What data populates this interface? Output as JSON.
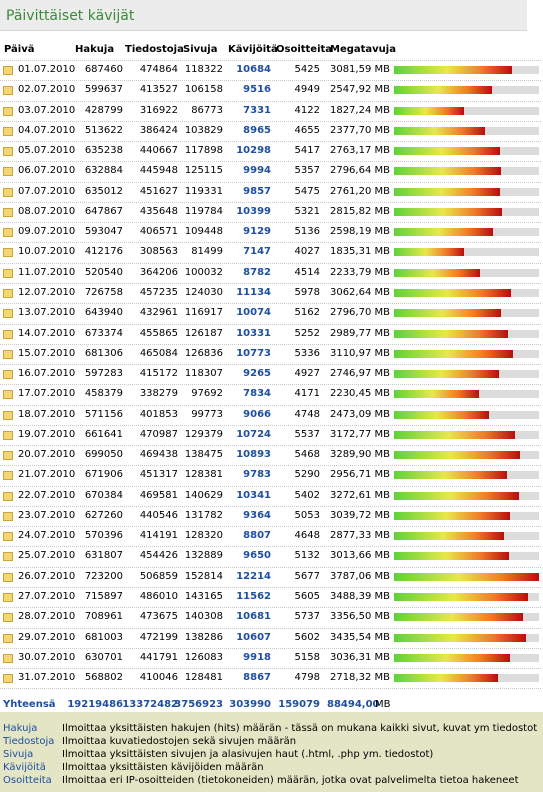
{
  "title": "Päivittäiset kävijät",
  "table": {
    "columns": [
      "Päivä",
      "Hakuja",
      "Tiedostoja",
      "Sivuja",
      "Kävijöitä",
      "Osoitteita",
      "Megatavuja"
    ],
    "rows": [
      {
        "date": "01.07.2010",
        "hits": 687460,
        "files": 474864,
        "pages": 118322,
        "visits": 10684,
        "sites": 5425,
        "mb": 3081.59,
        "mb_label": "3081,59 MB"
      },
      {
        "date": "02.07.2010",
        "hits": 599637,
        "files": 413527,
        "pages": 106158,
        "visits": 9516,
        "sites": 4949,
        "mb": 2547.92,
        "mb_label": "2547,92 MB"
      },
      {
        "date": "03.07.2010",
        "hits": 428799,
        "files": 316922,
        "pages": 86773,
        "visits": 7331,
        "sites": 4122,
        "mb": 1827.24,
        "mb_label": "1827,24 MB"
      },
      {
        "date": "04.07.2010",
        "hits": 513622,
        "files": 386424,
        "pages": 103829,
        "visits": 8965,
        "sites": 4655,
        "mb": 2377.7,
        "mb_label": "2377,70 MB"
      },
      {
        "date": "05.07.2010",
        "hits": 635238,
        "files": 440667,
        "pages": 117898,
        "visits": 10298,
        "sites": 5417,
        "mb": 2763.17,
        "mb_label": "2763,17 MB"
      },
      {
        "date": "06.07.2010",
        "hits": 632884,
        "files": 445948,
        "pages": 125115,
        "visits": 9994,
        "sites": 5357,
        "mb": 2796.64,
        "mb_label": "2796,64 MB"
      },
      {
        "date": "07.07.2010",
        "hits": 635012,
        "files": 451627,
        "pages": 119331,
        "visits": 9857,
        "sites": 5475,
        "mb": 2761.2,
        "mb_label": "2761,20 MB"
      },
      {
        "date": "08.07.2010",
        "hits": 647867,
        "files": 435648,
        "pages": 119784,
        "visits": 10399,
        "sites": 5321,
        "mb": 2815.82,
        "mb_label": "2815,82 MB"
      },
      {
        "date": "09.07.2010",
        "hits": 593047,
        "files": 406571,
        "pages": 109448,
        "visits": 9129,
        "sites": 5136,
        "mb": 2598.19,
        "mb_label": "2598,19 MB"
      },
      {
        "date": "10.07.2010",
        "hits": 412176,
        "files": 308563,
        "pages": 81499,
        "visits": 7147,
        "sites": 4027,
        "mb": 1835.31,
        "mb_label": "1835,31 MB"
      },
      {
        "date": "11.07.2010",
        "hits": 520540,
        "files": 364206,
        "pages": 100032,
        "visits": 8782,
        "sites": 4514,
        "mb": 2233.79,
        "mb_label": "2233,79 MB"
      },
      {
        "date": "12.07.2010",
        "hits": 726758,
        "files": 457235,
        "pages": 124030,
        "visits": 11134,
        "sites": 5978,
        "mb": 3062.64,
        "mb_label": "3062,64 MB"
      },
      {
        "date": "13.07.2010",
        "hits": 643940,
        "files": 432961,
        "pages": 116917,
        "visits": 10074,
        "sites": 5162,
        "mb": 2796.7,
        "mb_label": "2796,70 MB"
      },
      {
        "date": "14.07.2010",
        "hits": 673374,
        "files": 455865,
        "pages": 126187,
        "visits": 10331,
        "sites": 5252,
        "mb": 2989.77,
        "mb_label": "2989,77 MB"
      },
      {
        "date": "15.07.2010",
        "hits": 681306,
        "files": 465084,
        "pages": 126836,
        "visits": 10773,
        "sites": 5336,
        "mb": 3110.97,
        "mb_label": "3110,97 MB"
      },
      {
        "date": "16.07.2010",
        "hits": 597283,
        "files": 415172,
        "pages": 118307,
        "visits": 9265,
        "sites": 4927,
        "mb": 2746.97,
        "mb_label": "2746,97 MB"
      },
      {
        "date": "17.07.2010",
        "hits": 458379,
        "files": 338279,
        "pages": 97692,
        "visits": 7834,
        "sites": 4171,
        "mb": 2230.45,
        "mb_label": "2230,45 MB"
      },
      {
        "date": "18.07.2010",
        "hits": 571156,
        "files": 401853,
        "pages": 99773,
        "visits": 9066,
        "sites": 4748,
        "mb": 2473.09,
        "mb_label": "2473,09 MB"
      },
      {
        "date": "19.07.2010",
        "hits": 661641,
        "files": 470987,
        "pages": 129379,
        "visits": 10724,
        "sites": 5537,
        "mb": 3172.77,
        "mb_label": "3172,77 MB"
      },
      {
        "date": "20.07.2010",
        "hits": 699050,
        "files": 469438,
        "pages": 138475,
        "visits": 10893,
        "sites": 5468,
        "mb": 3289.9,
        "mb_label": "3289,90 MB"
      },
      {
        "date": "21.07.2010",
        "hits": 671906,
        "files": 451317,
        "pages": 128381,
        "visits": 9783,
        "sites": 5290,
        "mb": 2956.71,
        "mb_label": "2956,71 MB"
      },
      {
        "date": "22.07.2010",
        "hits": 670384,
        "files": 469581,
        "pages": 140629,
        "visits": 10341,
        "sites": 5402,
        "mb": 3272.61,
        "mb_label": "3272,61 MB"
      },
      {
        "date": "23.07.2010",
        "hits": 627260,
        "files": 440546,
        "pages": 131782,
        "visits": 9364,
        "sites": 5053,
        "mb": 3039.72,
        "mb_label": "3039,72 MB"
      },
      {
        "date": "24.07.2010",
        "hits": 570396,
        "files": 414191,
        "pages": 128320,
        "visits": 8807,
        "sites": 4648,
        "mb": 2877.33,
        "mb_label": "2877,33 MB"
      },
      {
        "date": "25.07.2010",
        "hits": 631807,
        "files": 454426,
        "pages": 132889,
        "visits": 9650,
        "sites": 5132,
        "mb": 3013.66,
        "mb_label": "3013,66 MB"
      },
      {
        "date": "26.07.2010",
        "hits": 723200,
        "files": 506859,
        "pages": 152814,
        "visits": 12214,
        "sites": 5677,
        "mb": 3787.06,
        "mb_label": "3787,06 MB"
      },
      {
        "date": "27.07.2010",
        "hits": 715897,
        "files": 486010,
        "pages": 143165,
        "visits": 11562,
        "sites": 5605,
        "mb": 3488.39,
        "mb_label": "3488,39 MB"
      },
      {
        "date": "28.07.2010",
        "hits": 708961,
        "files": 473675,
        "pages": 140308,
        "visits": 10681,
        "sites": 5737,
        "mb": 3356.5,
        "mb_label": "3356,50 MB"
      },
      {
        "date": "29.07.2010",
        "hits": 681003,
        "files": 472199,
        "pages": 138286,
        "visits": 10607,
        "sites": 5602,
        "mb": 3435.54,
        "mb_label": "3435,54 MB"
      },
      {
        "date": "30.07.2010",
        "hits": 630701,
        "files": 441791,
        "pages": 126083,
        "visits": 9918,
        "sites": 5158,
        "mb": 3036.31,
        "mb_label": "3036,31 MB"
      },
      {
        "date": "31.07.2010",
        "hits": 568802,
        "files": 410046,
        "pages": 128481,
        "visits": 8867,
        "sites": 4798,
        "mb": 2718.32,
        "mb_label": "2718,32 MB"
      }
    ],
    "total": {
      "label": "Yhteensä",
      "hits": 19219486,
      "files": 13372482,
      "pages": 3756923,
      "visits": 303990,
      "sites": 159079,
      "mb_label": "88494,00",
      "unit": "MB"
    }
  },
  "legend": [
    {
      "term": "Hakuja",
      "text": "Ilmoittaa yksittäisten hakujen (hits) määrän - tässä on mukana kaikki sivut, kuvat ym tiedostot"
    },
    {
      "term": "Tiedostoja",
      "text": "Ilmoittaa kuvatiedostojen sekä sivujen määrän"
    },
    {
      "term": "Sivuja",
      "text": "Ilmoittaa yksittäisten sivujen ja alasivujen haut (.html, .php ym. tiedostot)"
    },
    {
      "term": "Kävijöitä",
      "text": "Ilmoittaa yksittäisten kävijöiden määrän"
    },
    {
      "term": "Osoitteita",
      "text": "Ilmoittaa eri IP-osoitteiden (tietokoneiden) määrän, jotka ovat palvelimelta tietoa hakeneet"
    }
  ]
}
